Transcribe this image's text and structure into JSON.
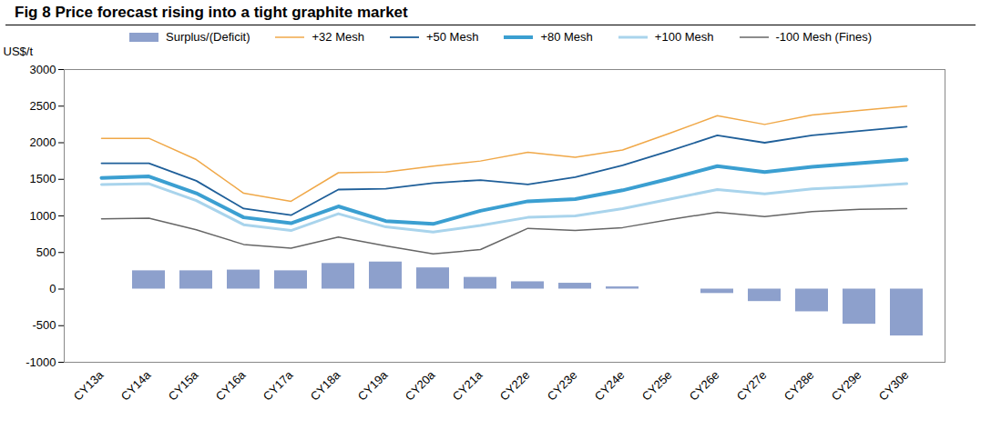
{
  "chart_data": {
    "type": "line",
    "title": "Fig 8 Price forecast rising into a tight graphite market",
    "y_label": "US$/t",
    "categories": [
      "CY13a",
      "CY14a",
      "CY15a",
      "CY16a",
      "CY17a",
      "CY18a",
      "CY19a",
      "CY20a",
      "CY21a",
      "CY22e",
      "CY23e",
      "CY24e",
      "CY25e",
      "CY26e",
      "CY27e",
      "CY28e",
      "CY29e",
      "CY30e"
    ],
    "ylim": [
      -1000,
      3000
    ],
    "yticks": [
      -1000,
      -500,
      0,
      500,
      1000,
      1500,
      2000,
      2500,
      3000
    ],
    "grid": false,
    "series": [
      {
        "name": "Surplus/(Deficit)",
        "type": "bar",
        "color": "#8da0cc",
        "values": [
          null,
          250,
          250,
          260,
          250,
          350,
          370,
          290,
          160,
          100,
          80,
          30,
          0,
          -60,
          -170,
          -310,
          -480,
          -640
        ]
      },
      {
        "name": "+32 Mesh",
        "type": "line",
        "color": "#f0a848",
        "values": [
          2060,
          2060,
          1770,
          1310,
          1200,
          1590,
          1600,
          1680,
          1750,
          1870,
          1800,
          1900,
          2130,
          2370,
          2250,
          2380,
          2440,
          2500
        ]
      },
      {
        "name": "+50 Mesh",
        "type": "line",
        "color": "#1f5f99",
        "values": [
          1720,
          1720,
          1480,
          1100,
          1010,
          1360,
          1370,
          1450,
          1490,
          1430,
          1530,
          1690,
          1890,
          2100,
          2000,
          2100,
          2160,
          2220
        ]
      },
      {
        "name": "+80 Mesh",
        "type": "line",
        "color": "#3b9fd1",
        "values": [
          1520,
          1540,
          1310,
          980,
          900,
          1130,
          930,
          890,
          1070,
          1200,
          1230,
          1350,
          1510,
          1680,
          1600,
          1670,
          1720,
          1770
        ]
      },
      {
        "name": "+100 Mesh",
        "type": "line",
        "color": "#a9d4ec",
        "values": [
          1430,
          1440,
          1210,
          880,
          800,
          1030,
          850,
          780,
          870,
          980,
          1000,
          1100,
          1230,
          1360,
          1300,
          1370,
          1400,
          1440
        ]
      },
      {
        "name": "-100 Mesh (Fines)",
        "type": "line",
        "color": "#666666",
        "values": [
          960,
          970,
          810,
          610,
          560,
          710,
          590,
          480,
          540,
          830,
          800,
          840,
          950,
          1050,
          990,
          1060,
          1090,
          1100
        ]
      }
    ]
  }
}
